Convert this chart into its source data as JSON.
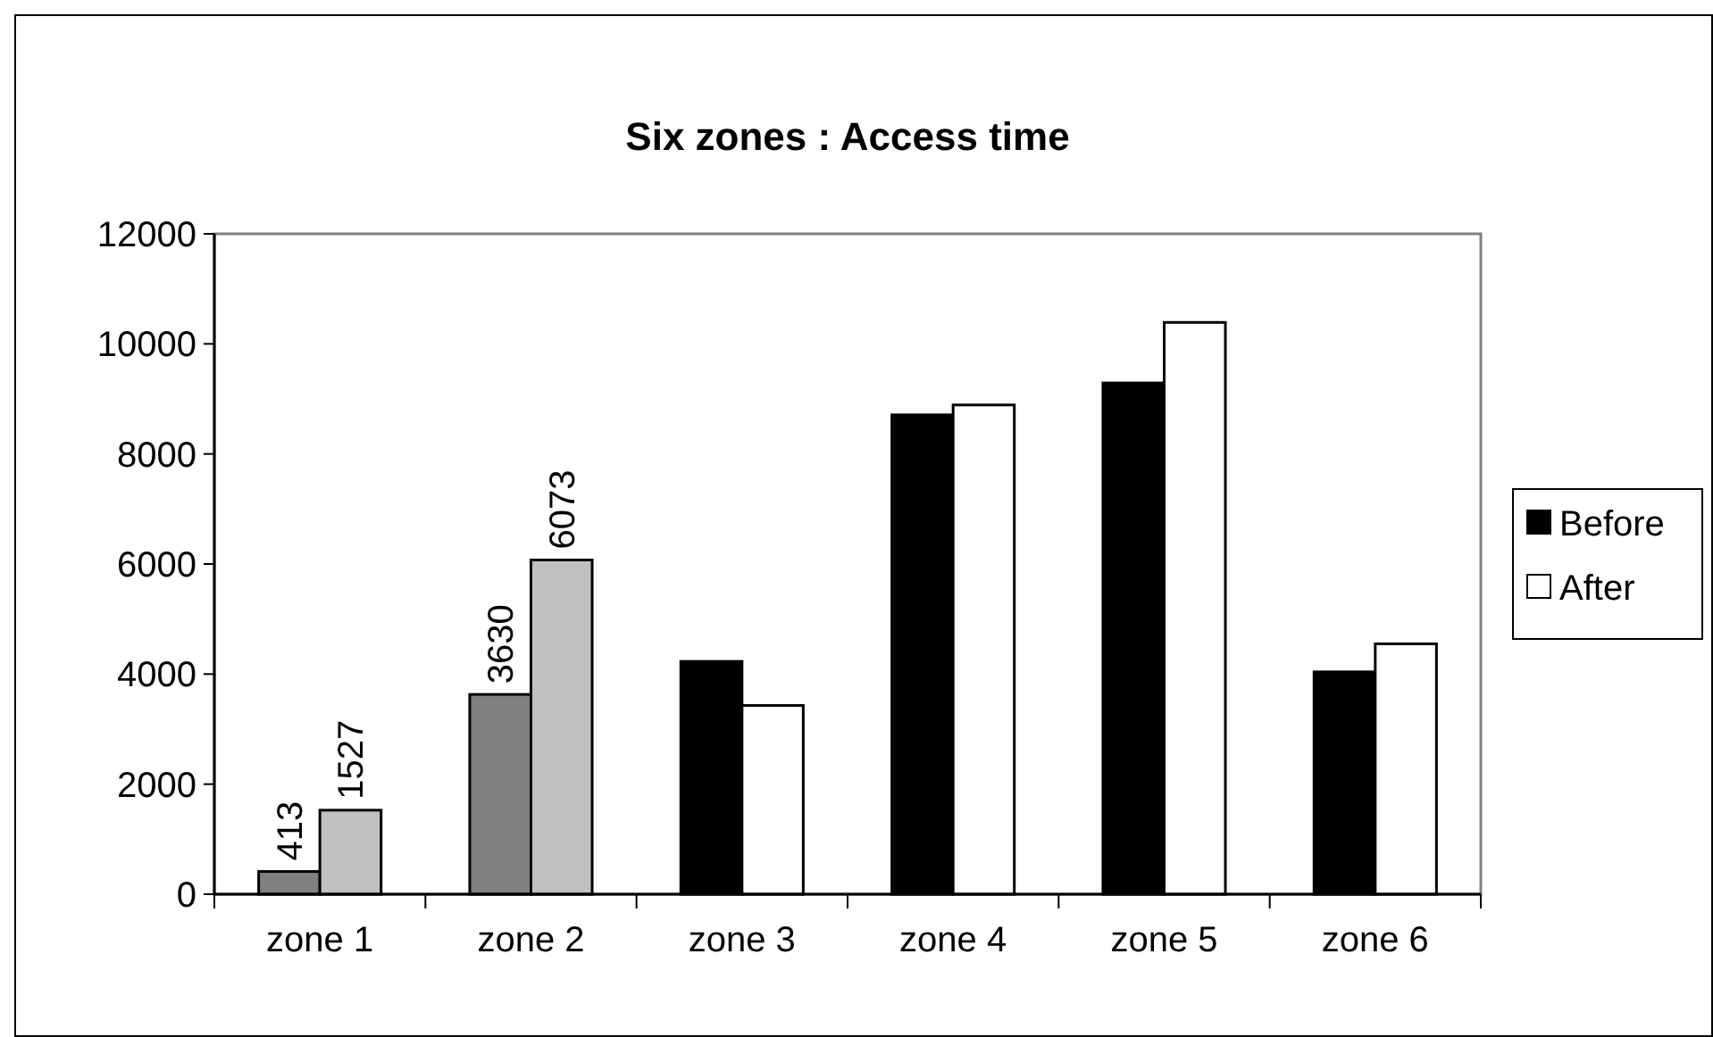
{
  "chart_data": {
    "type": "bar",
    "title": "Six zones : Access time",
    "categories": [
      "zone 1",
      "zone 2",
      "zone 3",
      "zone 4",
      "zone 5",
      "zone 6"
    ],
    "series": [
      {
        "name": "Before",
        "color": "#000000",
        "colors": [
          "#808080",
          "#808080",
          "#000000",
          "#000000",
          "#000000",
          "#000000"
        ],
        "values": [
          413,
          3630,
          4230,
          8710,
          9290,
          4040
        ],
        "value_labels": [
          "413",
          "3630",
          null,
          null,
          null,
          null
        ]
      },
      {
        "name": "After",
        "color": "#ffffff",
        "colors": [
          "#c0c0c0",
          "#c0c0c0",
          "#ffffff",
          "#ffffff",
          "#ffffff",
          "#ffffff"
        ],
        "values": [
          1527,
          6073,
          3430,
          8890,
          10390,
          4550
        ],
        "value_labels": [
          "1527",
          "6073",
          null,
          null,
          null,
          null
        ]
      }
    ],
    "ylim": [
      0,
      12000
    ],
    "yticks": [
      0,
      2000,
      4000,
      6000,
      8000,
      10000,
      12000
    ],
    "grid": false,
    "legend": "right"
  }
}
